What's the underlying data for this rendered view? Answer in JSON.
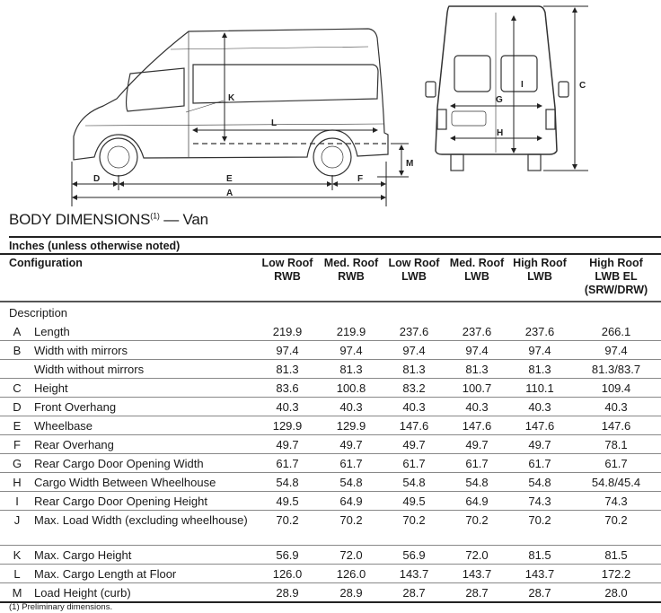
{
  "drawing": {
    "side_labels": {
      "K": "K",
      "L": "L",
      "M": "M",
      "D": "D",
      "E": "E",
      "F": "F",
      "A": "A"
    },
    "rear_labels": {
      "G": "G",
      "H": "H",
      "I": "I",
      "C": "C"
    }
  },
  "title": "BODY DIMENSIONS",
  "title_note": "(1)",
  "title_suffix": " — Van",
  "units": "Inches (unless otherwise noted)",
  "table": {
    "config_header": "Configuration",
    "columns": [
      {
        "l1": "Low Roof",
        "l2": "RWB",
        "l3": ""
      },
      {
        "l1": "Med. Roof",
        "l2": "RWB",
        "l3": ""
      },
      {
        "l1": "Low Roof",
        "l2": "LWB",
        "l3": ""
      },
      {
        "l1": "Med. Roof",
        "l2": "LWB",
        "l3": ""
      },
      {
        "l1": "High Roof",
        "l2": "LWB",
        "l3": ""
      },
      {
        "l1": "High Roof",
        "l2": "LWB EL",
        "l3": "(SRW/DRW)"
      }
    ],
    "description_label": "Description",
    "rows": [
      {
        "letter": "A",
        "label": "Length",
        "values": [
          "219.9",
          "219.9",
          "237.6",
          "237.6",
          "237.6",
          "266.1"
        ]
      },
      {
        "letter": "B",
        "label": "Width with mirrors",
        "values": [
          "97.4",
          "97.4",
          "97.4",
          "97.4",
          "97.4",
          "97.4"
        ]
      },
      {
        "letter": "",
        "label": "Width without mirrors",
        "values": [
          "81.3",
          "81.3",
          "81.3",
          "81.3",
          "81.3",
          "81.3/83.7"
        ]
      },
      {
        "letter": "C",
        "label": "Height",
        "values": [
          "83.6",
          "100.8",
          "83.2",
          "100.7",
          "110.1",
          "109.4"
        ]
      },
      {
        "letter": "D",
        "label": "Front Overhang",
        "values": [
          "40.3",
          "40.3",
          "40.3",
          "40.3",
          "40.3",
          "40.3"
        ]
      },
      {
        "letter": "E",
        "label": "Wheelbase",
        "values": [
          "129.9",
          "129.9",
          "147.6",
          "147.6",
          "147.6",
          "147.6"
        ]
      },
      {
        "letter": "F",
        "label": "Rear Overhang",
        "values": [
          "49.7",
          "49.7",
          "49.7",
          "49.7",
          "49.7",
          "78.1"
        ]
      },
      {
        "letter": "G",
        "label": "Rear Cargo Door Opening Width",
        "values": [
          "61.7",
          "61.7",
          "61.7",
          "61.7",
          "61.7",
          "61.7"
        ]
      },
      {
        "letter": "H",
        "label": "Cargo Width Between Wheelhouse",
        "values": [
          "54.8",
          "54.8",
          "54.8",
          "54.8",
          "54.8",
          "54.8/45.4"
        ]
      },
      {
        "letter": "I",
        "label": "Rear Cargo Door Opening Height",
        "values": [
          "49.5",
          "64.9",
          "49.5",
          "64.9",
          "74.3",
          "74.3"
        ]
      },
      {
        "letter": "J",
        "label": "Max. Load Width (excluding wheelhouse)",
        "values": [
          "70.2",
          "70.2",
          "70.2",
          "70.2",
          "70.2",
          "70.2"
        ]
      },
      {
        "letter": "K",
        "label": "Max. Cargo Height",
        "values": [
          "56.9",
          "72.0",
          "56.9",
          "72.0",
          "81.5",
          "81.5"
        ]
      },
      {
        "letter": "L",
        "label": "Max. Cargo Length at Floor",
        "values": [
          "126.0",
          "126.0",
          "143.7",
          "143.7",
          "143.7",
          "172.2"
        ]
      },
      {
        "letter": "M",
        "label": "Load Height (curb)",
        "values": [
          "28.9",
          "28.9",
          "28.7",
          "28.7",
          "28.7",
          "28.0"
        ]
      }
    ]
  },
  "footnote": "(1)  Preliminary dimensions."
}
